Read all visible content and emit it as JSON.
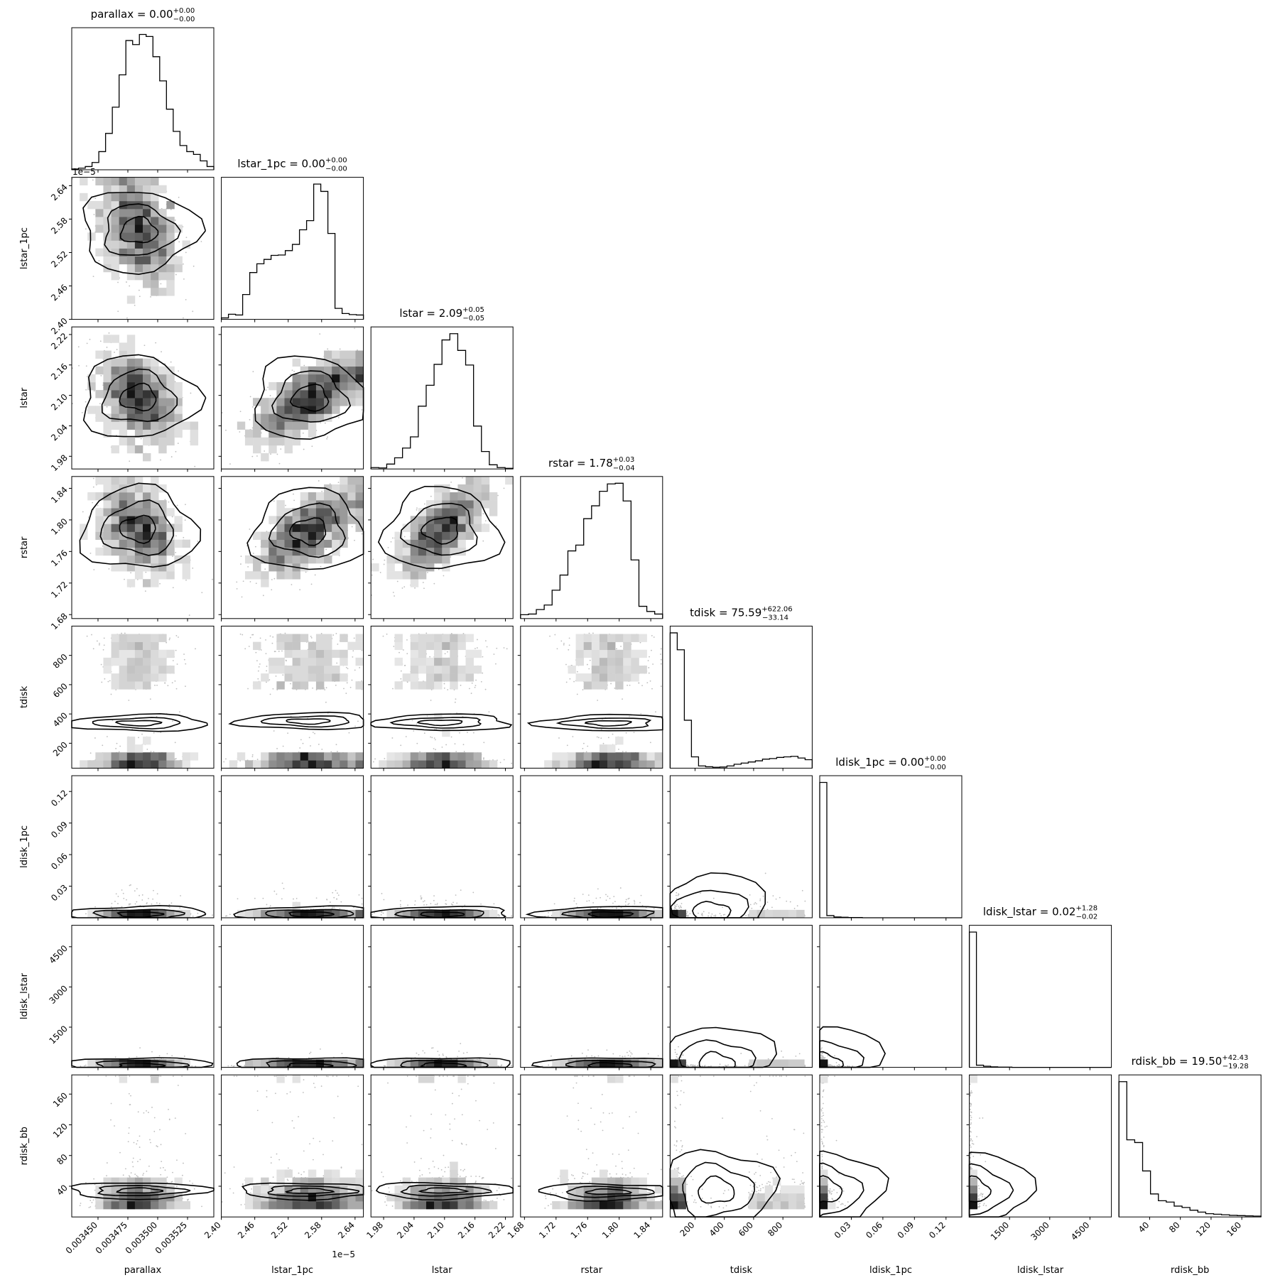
{
  "chart_data": {
    "type": "corner",
    "grid": false,
    "params": [
      {
        "name": "parallax",
        "title": "parallax = 0.00",
        "median": "0.00",
        "err_plus": "0.00",
        "err_minus": "0.00",
        "ticks": [
          0.00345,
          0.003475,
          0.0035,
          0.003525
        ],
        "tick_labels": [
          "0.003450",
          "0.003475",
          "0.003500",
          "0.003525"
        ],
        "range": [
          0.003428,
          0.003547
        ],
        "offset": "",
        "row_offset": "1e−5",
        "hist": [
          2,
          4,
          8,
          18,
          45,
          90,
          155,
          235,
          320,
          310,
          335,
          330,
          280,
          220,
          150,
          95,
          60,
          45,
          38,
          22,
          8
        ]
      },
      {
        "name": "lstar_1pc",
        "title": "lstar_1pc = 0.00",
        "median": "0.00",
        "err_plus": "0.00",
        "err_minus": "0.00",
        "ticks": [
          2.4,
          2.46,
          2.52,
          2.58,
          2.64
        ],
        "tick_labels": [
          "2.40",
          "2.46",
          "2.52",
          "2.58",
          "2.64"
        ],
        "range": [
          2.4,
          2.655
        ],
        "offset": "1e−5",
        "hist": [
          4,
          14,
          12,
          68,
          128,
          152,
          164,
          175,
          176,
          188,
          205,
          245,
          270,
          370,
          350,
          235,
          30,
          16,
          13,
          12
        ]
      },
      {
        "name": "lstar",
        "title": "lstar = 2.09",
        "median": "2.09",
        "err_plus": "0.05",
        "err_minus": "0.05",
        "ticks": [
          1.98,
          2.04,
          2.1,
          2.16,
          2.22
        ],
        "tick_labels": [
          "1.98",
          "2.04",
          "2.10",
          "2.16",
          "2.22"
        ],
        "range": [
          1.955,
          2.235
        ],
        "hist": [
          4,
          3,
          14,
          32,
          60,
          92,
          180,
          240,
          300,
          370,
          388,
          340,
          298,
          123,
          50,
          12,
          4,
          2
        ]
      },
      {
        "name": "rstar",
        "title": "rstar = 1.78",
        "median": "1.78",
        "err_plus": "0.03",
        "err_minus": "0.04",
        "ticks": [
          1.68,
          1.72,
          1.76,
          1.8,
          1.84
        ],
        "tick_labels": [
          "1.68",
          "1.72",
          "1.76",
          "1.80",
          "1.84"
        ],
        "range": [
          1.675,
          1.855
        ],
        "hist": [
          12,
          14,
          28,
          42,
          88,
          135,
          210,
          228,
          310,
          350,
          395,
          418,
          420,
          365,
          182,
          38,
          22,
          14
        ]
      },
      {
        "name": "tdisk",
        "title": "tdisk = 75.59",
        "median": "75.59",
        "err_plus": "622.06",
        "err_minus": "33.14",
        "ticks": [
          200,
          400,
          600,
          800
        ],
        "tick_labels": [
          "200",
          "400",
          "600",
          "800"
        ],
        "range": [
          30,
          1000
        ],
        "hist": [
          480,
          420,
          170,
          40,
          8,
          5,
          3,
          4,
          8,
          14,
          18,
          22,
          26,
          32,
          34,
          38,
          40,
          42,
          36,
          30
        ]
      },
      {
        "name": "ldisk_1pc",
        "title": "ldisk_1pc = 0.00",
        "median": "0.00",
        "err_plus": "0.00",
        "err_minus": "0.00",
        "ticks": [
          0.03,
          0.06,
          0.09,
          0.12
        ],
        "tick_labels": [
          "0.03",
          "0.06",
          "0.09",
          "0.12"
        ],
        "range": [
          0,
          0.135
        ],
        "hist": [
          500,
          8,
          3,
          2,
          1,
          1,
          0,
          0,
          0,
          0,
          0,
          0,
          0,
          0,
          0,
          0,
          0,
          0,
          0,
          0
        ]
      },
      {
        "name": "ldisk_lstar",
        "title": "ldisk_lstar = 0.02",
        "median": "0.02",
        "err_plus": "1.28",
        "err_minus": "0.02",
        "ticks": [
          1500,
          3000,
          4500
        ],
        "tick_labels": [
          "1500",
          "3000",
          "4500"
        ],
        "range": [
          0,
          5300
        ],
        "hist": [
          500,
          8,
          4,
          2,
          1,
          1,
          0,
          0,
          0,
          0,
          0,
          0,
          0,
          0,
          0,
          0,
          0,
          0,
          0,
          0
        ]
      },
      {
        "name": "rdisk_bb",
        "title": "rdisk_bb = 19.50",
        "median": "19.50",
        "err_plus": "42.43",
        "err_minus": "19.28",
        "ticks": [
          40,
          80,
          120,
          160
        ],
        "tick_labels": [
          "40",
          "80",
          "120",
          "160"
        ],
        "range": [
          0,
          185
        ],
        "hist": [
          500,
          285,
          275,
          170,
          85,
          60,
          55,
          40,
          35,
          25,
          18,
          12,
          10,
          8,
          6,
          5,
          4,
          3
        ]
      }
    ]
  }
}
